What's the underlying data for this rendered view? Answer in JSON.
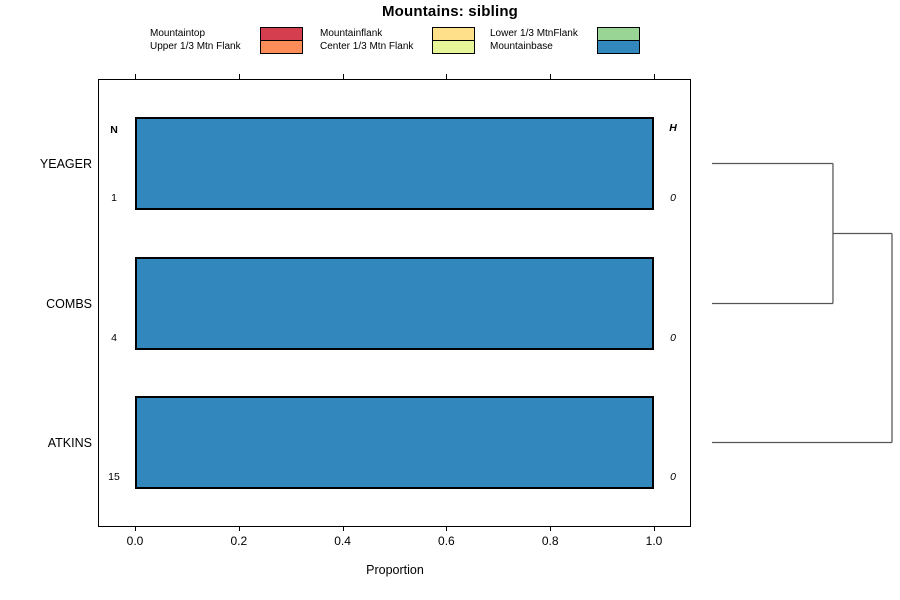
{
  "chart_data": {
    "type": "bar",
    "orientation": "horizontal",
    "stacked": true,
    "title": "Mountains: sibling",
    "xlabel": "Proportion",
    "xlim": [
      0,
      1
    ],
    "xticks": [
      0,
      0.2,
      0.4,
      0.6,
      0.8,
      1.0
    ],
    "xtick_labels": [
      "0.0",
      "0.2",
      "0.4",
      "0.6",
      "0.8",
      "1.0"
    ],
    "grid": false,
    "categories": [
      "YEAGER",
      "COMBS",
      "ATKINS"
    ],
    "series": [
      {
        "name": "Mountainbase",
        "color": "#3288BD",
        "values": [
          1.0,
          1.0,
          1.0
        ]
      }
    ],
    "n_column": {
      "header": "N",
      "values": [
        "1",
        "4",
        "15"
      ]
    },
    "h_column": {
      "header": "H",
      "values": [
        "0",
        "0",
        "0"
      ]
    },
    "legend": {
      "position": "top",
      "entries": [
        {
          "label": "Mountaintop",
          "color": "#D53E4F"
        },
        {
          "label": "Upper 1/3 Mtn Flank",
          "color": "#FC8D59"
        },
        {
          "label": "Mountainflank",
          "color": "#FEE08B"
        },
        {
          "label": "Center 1/3 Mtn Flank",
          "color": "#E6F598"
        },
        {
          "label": "Lower 1/3 MtnFlank",
          "color": "#99D594"
        },
        {
          "label": "Mountainbase",
          "color": "#3288BD"
        }
      ]
    },
    "dendrogram": {
      "side": "right",
      "line_color": "#555555",
      "merges": [
        {
          "a": "YEAGER",
          "b": "COMBS",
          "height": 0.672
        },
        {
          "a": "m0",
          "b": "ATKINS",
          "height": 1.0
        }
      ]
    }
  }
}
